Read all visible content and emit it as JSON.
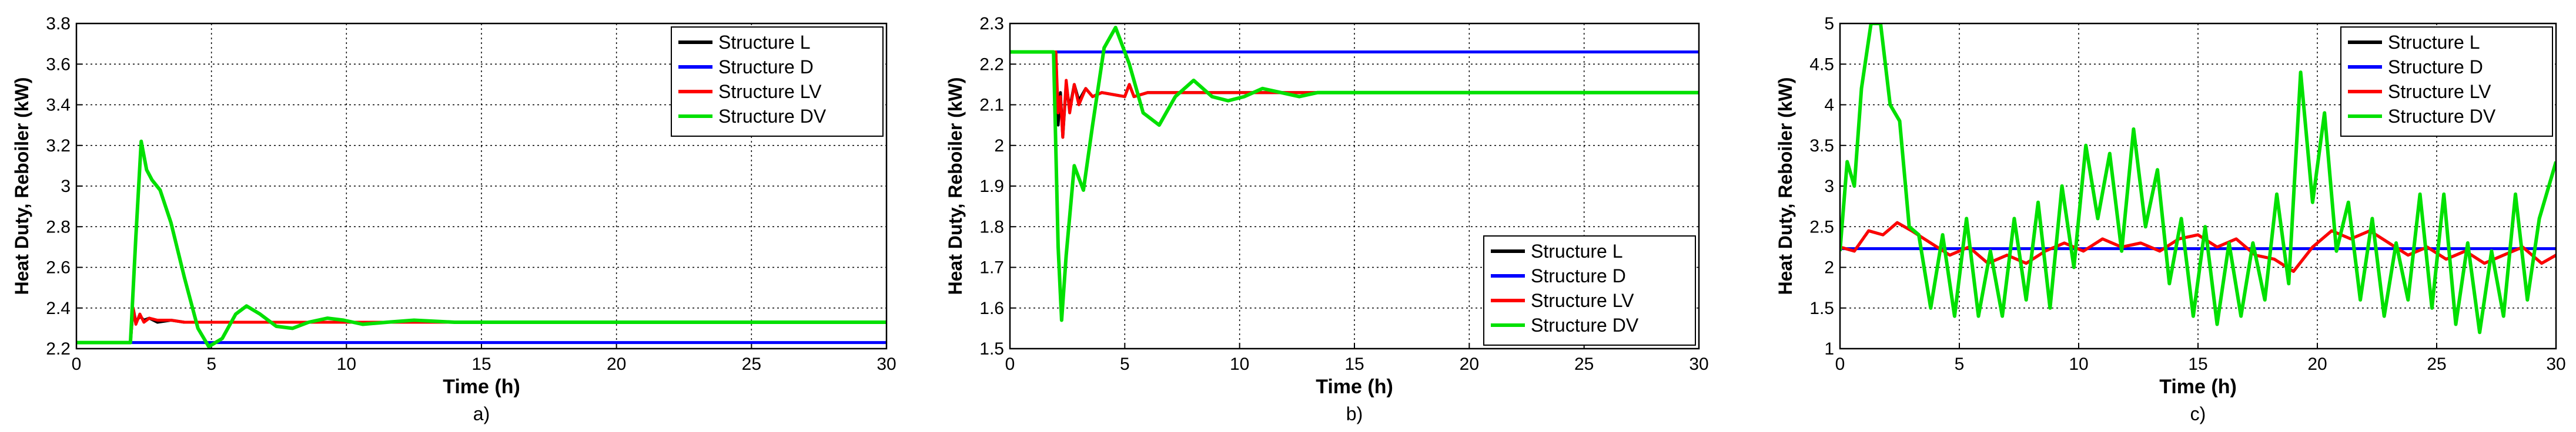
{
  "chart_data": [
    {
      "type": "line",
      "caption": "a)",
      "xlabel": "Time (h)",
      "ylabel": "Heat Duty, Reboiler (kW)",
      "xlim": [
        0,
        30
      ],
      "ylim": [
        2.2,
        3.8
      ],
      "xticks": [
        "0",
        "5",
        "10",
        "15",
        "20",
        "25",
        "30"
      ],
      "yticks": [
        "2.2",
        "2.4",
        "2.6",
        "2.8",
        "3",
        "3.2",
        "3.4",
        "3.6",
        "3.8"
      ],
      "grid": true,
      "legend_position": "top-right",
      "series": [
        {
          "name": "Structure L",
          "color": "#000000",
          "x": [
            0,
            2,
            2.1,
            2.2,
            2.35,
            2.5,
            2.7,
            3,
            3.5,
            4,
            5,
            6,
            8,
            10,
            30
          ],
          "y": [
            2.23,
            2.23,
            2.4,
            2.33,
            2.36,
            2.34,
            2.35,
            2.33,
            2.34,
            2.33,
            2.33,
            2.33,
            2.33,
            2.33,
            2.33
          ]
        },
        {
          "name": "Structure D",
          "color": "#0000ff",
          "x": [
            0,
            30
          ],
          "y": [
            2.23,
            2.23
          ]
        },
        {
          "name": "Structure LV",
          "color": "#ff0000",
          "x": [
            0,
            2,
            2.1,
            2.2,
            2.35,
            2.5,
            2.7,
            3,
            3.5,
            4,
            5,
            6,
            8,
            10,
            30
          ],
          "y": [
            2.23,
            2.23,
            2.4,
            2.32,
            2.37,
            2.33,
            2.35,
            2.34,
            2.34,
            2.33,
            2.33,
            2.33,
            2.33,
            2.33,
            2.33
          ]
        },
        {
          "name": "Structure DV",
          "color": "#00e000",
          "x": [
            0,
            2,
            2.2,
            2.4,
            2.6,
            2.8,
            3.1,
            3.5,
            4,
            4.5,
            4.9,
            5.4,
            5.9,
            6.3,
            6.8,
            7.4,
            8,
            8.6,
            9.3,
            9.9,
            10.6,
            11.5,
            12.5,
            14,
            30
          ],
          "y": [
            2.23,
            2.23,
            2.75,
            3.22,
            3.08,
            3.03,
            2.98,
            2.82,
            2.55,
            2.3,
            2.21,
            2.25,
            2.37,
            2.41,
            2.37,
            2.31,
            2.3,
            2.33,
            2.35,
            2.34,
            2.32,
            2.33,
            2.34,
            2.33,
            2.33
          ]
        }
      ]
    },
    {
      "type": "line",
      "caption": "b)",
      "xlabel": "Time (h)",
      "ylabel": "Heat Duty, Reboiler (kW)",
      "xlim": [
        0,
        30
      ],
      "ylim": [
        1.5,
        2.3
      ],
      "xticks": [
        "0",
        "5",
        "10",
        "15",
        "20",
        "25",
        "30"
      ],
      "yticks": [
        "1.5",
        "1.6",
        "1.7",
        "1.8",
        "1.9",
        "2",
        "2.1",
        "2.2",
        "2.3"
      ],
      "grid": true,
      "legend_position": "bottom-right",
      "series": [
        {
          "name": "Structure L",
          "color": "#000000",
          "x": [
            0,
            2,
            2.1,
            2.2,
            2.3,
            2.45,
            2.6,
            2.8,
            3,
            3.3,
            3.6,
            4,
            5,
            5.2,
            5.4,
            6,
            8,
            30
          ],
          "y": [
            2.23,
            2.23,
            2.05,
            2.13,
            2.02,
            2.15,
            2.09,
            2.15,
            2.11,
            2.14,
            2.12,
            2.13,
            2.12,
            2.15,
            2.12,
            2.13,
            2.13,
            2.13
          ]
        },
        {
          "name": "Structure D",
          "color": "#0000ff",
          "x": [
            0,
            30
          ],
          "y": [
            2.23,
            2.23
          ]
        },
        {
          "name": "Structure LV",
          "color": "#ff0000",
          "x": [
            0,
            2,
            2.1,
            2.2,
            2.3,
            2.45,
            2.6,
            2.8,
            3,
            3.3,
            3.6,
            4,
            5,
            5.2,
            5.4,
            6,
            8,
            30
          ],
          "y": [
            2.23,
            2.23,
            2.08,
            2.12,
            2.02,
            2.16,
            2.08,
            2.15,
            2.1,
            2.14,
            2.12,
            2.13,
            2.12,
            2.15,
            2.12,
            2.13,
            2.13,
            2.13
          ]
        },
        {
          "name": "Structure DV",
          "color": "#00e000",
          "x": [
            0,
            1.9,
            2.1,
            2.25,
            2.45,
            2.8,
            3.2,
            3.6,
            4.1,
            4.6,
            5.2,
            5.8,
            6.5,
            7.2,
            8,
            8.8,
            9.5,
            10.2,
            11,
            11.8,
            12.6,
            13.4,
            14.5,
            16,
            30
          ],
          "y": [
            2.23,
            2.23,
            1.75,
            1.57,
            1.73,
            1.95,
            1.89,
            2.05,
            2.24,
            2.29,
            2.2,
            2.08,
            2.05,
            2.12,
            2.16,
            2.12,
            2.11,
            2.12,
            2.14,
            2.13,
            2.12,
            2.13,
            2.13,
            2.13,
            2.13
          ]
        }
      ]
    },
    {
      "type": "line",
      "caption": "c)",
      "xlabel": "Time (h)",
      "ylabel": "Heat Duty, Reboiler (kW)",
      "xlim": [
        0,
        30
      ],
      "ylim": [
        1,
        5
      ],
      "xticks": [
        "0",
        "5",
        "10",
        "15",
        "20",
        "25",
        "30"
      ],
      "yticks": [
        "1",
        "1.5",
        "2",
        "2.5",
        "3",
        "3.5",
        "4",
        "4.5",
        "5"
      ],
      "grid": true,
      "legend_position": "top-right",
      "series": [
        {
          "name": "Structure L",
          "color": "#000000",
          "x": [
            0,
            0.6,
            1.2,
            1.8,
            2.4,
            3,
            3.8,
            4.6,
            5.4,
            6.2,
            7,
            7.8,
            8.6,
            9.4,
            10.2,
            11,
            11.8,
            12.6,
            13.4,
            14.2,
            15,
            15.8,
            16.6,
            17.4,
            18.2,
            19,
            19.8,
            20.6,
            21.4,
            22.2,
            23,
            23.8,
            24.6,
            25.4,
            26.2,
            27,
            27.8,
            28.6,
            29.4,
            30
          ],
          "y": [
            2.25,
            2.2,
            2.45,
            2.4,
            2.55,
            2.45,
            2.3,
            2.15,
            2.25,
            2.05,
            2.15,
            2.05,
            2.2,
            2.3,
            2.2,
            2.35,
            2.25,
            2.3,
            2.2,
            2.35,
            2.4,
            2.25,
            2.35,
            2.15,
            2.1,
            1.95,
            2.25,
            2.45,
            2.35,
            2.45,
            2.3,
            2.15,
            2.25,
            2.1,
            2.2,
            2.05,
            2.15,
            2.25,
            2.05,
            2.15
          ]
        },
        {
          "name": "Structure D",
          "color": "#0000ff",
          "x": [
            0,
            30
          ],
          "y": [
            2.23,
            2.23
          ]
        },
        {
          "name": "Structure LV",
          "color": "#ff0000",
          "x": [
            0,
            0.6,
            1.2,
            1.8,
            2.4,
            3,
            3.8,
            4.6,
            5.4,
            6.2,
            7,
            7.8,
            8.6,
            9.4,
            10.2,
            11,
            11.8,
            12.6,
            13.4,
            14.2,
            15,
            15.8,
            16.6,
            17.4,
            18.2,
            19,
            19.8,
            20.6,
            21.4,
            22.2,
            23,
            23.8,
            24.6,
            25.4,
            26.2,
            27,
            27.8,
            28.6,
            29.4,
            30
          ],
          "y": [
            2.25,
            2.2,
            2.45,
            2.4,
            2.55,
            2.45,
            2.3,
            2.15,
            2.25,
            2.05,
            2.15,
            2.05,
            2.2,
            2.3,
            2.2,
            2.35,
            2.25,
            2.3,
            2.2,
            2.35,
            2.4,
            2.25,
            2.35,
            2.15,
            2.1,
            1.95,
            2.25,
            2.45,
            2.35,
            2.45,
            2.3,
            2.15,
            2.25,
            2.1,
            2.2,
            2.05,
            2.15,
            2.25,
            2.05,
            2.15
          ]
        },
        {
          "name": "Structure DV",
          "color": "#00e000",
          "x": [
            0,
            0.3,
            0.6,
            0.9,
            1.3,
            1.7,
            2.1,
            2.5,
            2.9,
            3.3,
            3.8,
            4.3,
            4.8,
            5.3,
            5.8,
            6.3,
            6.8,
            7.3,
            7.8,
            8.3,
            8.8,
            9.3,
            9.8,
            10.3,
            10.8,
            11.3,
            11.8,
            12.3,
            12.8,
            13.3,
            13.8,
            14.3,
            14.8,
            15.3,
            15.8,
            16.3,
            16.8,
            17.3,
            17.8,
            18.3,
            18.8,
            19.3,
            19.8,
            20.3,
            20.8,
            21.3,
            21.8,
            22.3,
            22.8,
            23.3,
            23.8,
            24.3,
            24.8,
            25.3,
            25.8,
            26.3,
            26.8,
            27.3,
            27.8,
            28.3,
            28.8,
            29.3,
            30
          ],
          "y": [
            2.2,
            3.3,
            3.0,
            4.2,
            5.0,
            5.0,
            4.0,
            3.8,
            2.5,
            2.4,
            1.5,
            2.4,
            1.4,
            2.6,
            1.4,
            2.2,
            1.4,
            2.6,
            1.6,
            2.8,
            1.5,
            3.0,
            2.0,
            3.5,
            2.6,
            3.4,
            2.2,
            3.7,
            2.5,
            3.2,
            1.8,
            2.6,
            1.4,
            2.5,
            1.3,
            2.3,
            1.4,
            2.3,
            1.6,
            2.9,
            1.8,
            4.4,
            2.8,
            3.9,
            2.2,
            2.8,
            1.6,
            2.6,
            1.4,
            2.3,
            1.6,
            2.9,
            1.5,
            2.9,
            1.3,
            2.3,
            1.2,
            2.2,
            1.4,
            2.9,
            1.6,
            2.6,
            3.3
          ]
        }
      ]
    }
  ]
}
